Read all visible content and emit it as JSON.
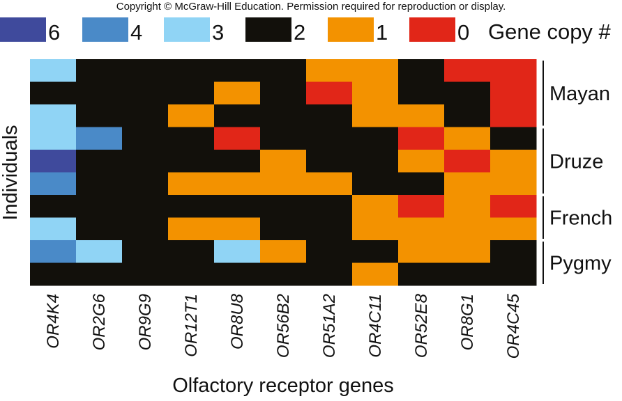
{
  "copyright": "Copyright © McGraw-Hill Education. Permission required for reproduction or display.",
  "chart_data": {
    "type": "heatmap",
    "xlabel": "Olfactory receptor genes",
    "ylabel": "Individuals",
    "columns": [
      "OR4K4",
      "OR2G6",
      "OR9G9",
      "OR12T1",
      "OR8U8",
      "OR56B2",
      "OR51A2",
      "OR4C11",
      "OR52E8",
      "OR8G1",
      "OR4C45"
    ],
    "legend": {
      "title": "Gene copy #",
      "position": "top",
      "entries": [
        {
          "value": "6",
          "color": "#3f4a9c"
        },
        {
          "value": "4",
          "color": "#4a8ac8"
        },
        {
          "value": "3",
          "color": "#90d4f5"
        },
        {
          "value": "2",
          "color": "#12100b"
        },
        {
          "value": "1",
          "color": "#f39200"
        },
        {
          "value": "0",
          "color": "#e12618"
        }
      ]
    },
    "groups": [
      {
        "label": "Mayan",
        "rows": [
          0,
          1,
          2
        ]
      },
      {
        "label": "Druze",
        "rows": [
          3,
          4,
          5
        ]
      },
      {
        "label": "French",
        "rows": [
          6,
          7
        ]
      },
      {
        "label": "Pygmy",
        "rows": [
          8,
          9
        ]
      }
    ],
    "values": [
      [
        3,
        2,
        2,
        2,
        2,
        2,
        1,
        1,
        2,
        0,
        0
      ],
      [
        2,
        2,
        2,
        2,
        1,
        2,
        0,
        1,
        2,
        2,
        0
      ],
      [
        3,
        2,
        2,
        1,
        2,
        2,
        2,
        1,
        1,
        2,
        0
      ],
      [
        3,
        4,
        2,
        2,
        0,
        2,
        2,
        2,
        0,
        1,
        2
      ],
      [
        6,
        2,
        2,
        2,
        2,
        1,
        2,
        2,
        1,
        0,
        1
      ],
      [
        4,
        2,
        2,
        1,
        1,
        1,
        1,
        2,
        2,
        1,
        1
      ],
      [
        2,
        2,
        2,
        2,
        2,
        2,
        2,
        1,
        0,
        1,
        0
      ],
      [
        3,
        2,
        2,
        1,
        1,
        2,
        2,
        1,
        1,
        1,
        1
      ],
      [
        4,
        3,
        2,
        2,
        3,
        1,
        2,
        2,
        1,
        1,
        2
      ],
      [
        2,
        2,
        2,
        2,
        2,
        2,
        2,
        1,
        2,
        2,
        2
      ]
    ]
  }
}
